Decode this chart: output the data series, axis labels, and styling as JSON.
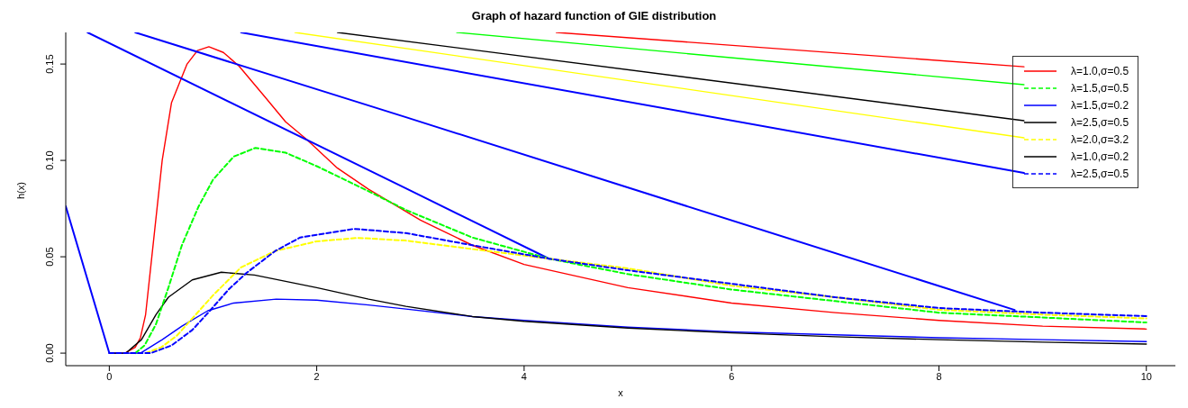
{
  "chart_data": {
    "type": "line",
    "title": "Graph of hazard function of GIE distribution",
    "xlabel": "x",
    "ylabel": "h(x)",
    "xlim": [
      -0.42,
      10.28
    ],
    "ylim": [
      -0.0065,
      0.1664
    ],
    "xticks": [
      0,
      2,
      4,
      6,
      8,
      10
    ],
    "yticks": [
      {
        "value": 0,
        "label": "0.00"
      },
      {
        "value": 0.05,
        "label": "0.05"
      },
      {
        "value": 0.1,
        "label": "0.10"
      },
      {
        "value": 0.15,
        "label": "0.15"
      }
    ],
    "grid": false,
    "legend": "top right",
    "marker": "none",
    "series": [
      {
        "name": "λ=1.0,σ=0.5",
        "color": "#ff0000",
        "line_style": "solid",
        "x": [
          0,
          0.15,
          0.25,
          0.3,
          0.35,
          0.41,
          0.46,
          0.51,
          0.6,
          0.75,
          0.85,
          0.96,
          1.1,
          1.25,
          1.5,
          1.7,
          1.9,
          2.2,
          2.5,
          3,
          3.5,
          4,
          5,
          6,
          7,
          8,
          9,
          10
        ],
        "values": [
          0,
          0,
          0.003,
          0.008,
          0.02,
          0.05,
          0.075,
          0.1,
          0.13,
          0.15,
          0.157,
          0.159,
          0.156,
          0.149,
          0.133,
          0.12,
          0.111,
          0.096,
          0.085,
          0.069,
          0.056,
          0.046,
          0.034,
          0.026,
          0.021,
          0.017,
          0.014,
          0.0125
        ]
      },
      {
        "name": "λ=1.5,σ=0.5",
        "color": "#00ff00",
        "line_style": "dashed",
        "x": [
          0.25,
          0.34,
          0.45,
          0.57,
          0.7,
          0.86,
          1,
          1.2,
          1.41,
          1.7,
          2,
          2.5,
          2.86,
          3.5,
          4.24,
          5,
          6,
          7,
          8,
          9,
          10
        ],
        "values": [
          0,
          0.004,
          0.015,
          0.034,
          0.056,
          0.076,
          0.09,
          0.102,
          0.1065,
          0.104,
          0.097,
          0.084,
          0.0743,
          0.06,
          0.049,
          0.041,
          0.033,
          0.027,
          0.021,
          0.0185,
          0.0159
        ]
      },
      {
        "name": "λ=1.5,σ=0.2",
        "color": "#0000ff",
        "line_style": "solid",
        "x": [
          0,
          0.3,
          0.51,
          0.7,
          0.95,
          1.2,
          1.61,
          2,
          2.5,
          2.86,
          3.5,
          4,
          5,
          6,
          7,
          8,
          9,
          10
        ],
        "values": [
          0,
          0,
          0.007,
          0.014,
          0.022,
          0.026,
          0.028,
          0.0275,
          0.025,
          0.0229,
          0.019,
          0.017,
          0.0135,
          0.011,
          0.0095,
          0.008,
          0.007,
          0.006
        ]
      },
      {
        "name": "λ=2.5,σ=0.5",
        "color": "#000000",
        "line_style": "solid",
        "x": [
          2.2,
          8.82
        ],
        "values": [
          0.1664,
          0.1206
        ]
      },
      {
        "name": "λ=2.0,σ=3.2",
        "color": "#ffff00",
        "line_style": "dashed",
        "x": [
          0.35,
          0.5,
          0.65,
          0.8,
          1,
          1.27,
          1.6,
          2,
          2.4,
          2.86,
          3.5,
          4.24,
          5,
          6,
          7,
          8,
          9,
          10
        ],
        "values": [
          0,
          0.003,
          0.009,
          0.018,
          0.03,
          0.0445,
          0.053,
          0.058,
          0.0598,
          0.0584,
          0.054,
          0.049,
          0.044,
          0.035,
          0.029,
          0.0225,
          0.02,
          0.018
        ]
      },
      {
        "name": "λ=1.0,σ=0.2",
        "color": "#000000",
        "line_style": "solid",
        "x": [
          0,
          0.16,
          0.31,
          0.45,
          0.57,
          0.8,
          1.08,
          1.4,
          2,
          2.5,
          2.86,
          3.5,
          4,
          5,
          6,
          7,
          8,
          9,
          10
        ],
        "values": [
          0,
          0,
          0.007,
          0.02,
          0.029,
          0.038,
          0.042,
          0.0405,
          0.034,
          0.028,
          0.0243,
          0.019,
          0.0165,
          0.013,
          0.0105,
          0.0085,
          0.007,
          0.0057,
          0.0047
        ]
      },
      {
        "name": "λ=2.5,σ=0.5",
        "color": "#0000ff",
        "line_style": "dashed",
        "x": [
          0,
          0.4,
          0.6,
          0.8,
          0.97,
          1.15,
          1.32,
          1.6,
          1.84,
          2.36,
          2.86,
          3.5,
          4.24,
          5,
          6,
          7,
          8,
          9,
          10
        ],
        "values": [
          0,
          0,
          0.004,
          0.012,
          0.022,
          0.033,
          0.0415,
          0.053,
          0.06,
          0.0645,
          0.0623,
          0.056,
          0.049,
          0.043,
          0.036,
          0.029,
          0.0234,
          0.021,
          0.0192
        ]
      },
      {
        "color": "#ff0000",
        "line_style": "solid",
        "x": [
          4.31,
          8.82
        ],
        "values": [
          0.1664,
          0.1486
        ]
      },
      {
        "color": "#00ff00",
        "line_style": "solid",
        "x": [
          3.35,
          8.82
        ],
        "values": [
          0.1664,
          0.1393
        ]
      },
      {
        "color": "#ffff00",
        "line_style": "solid",
        "x": [
          1.79,
          8.82
        ],
        "values": [
          0.1664,
          0.1117
        ]
      },
      {
        "color": "#0000ff",
        "line_style": "solid",
        "x": [
          1.27,
          8.82
        ],
        "values": [
          0.1664,
          0.0935
        ]
      },
      {
        "color": "#0000ff",
        "line_style": "solid",
        "x": [
          -0.42,
          0
        ],
        "values": [
          0.0762,
          0
        ]
      },
      {
        "color": "#0000ff",
        "line_style": "solid",
        "x": [
          -0.21,
          2.86,
          4.24
        ],
        "values": [
          0.1664,
          0.0855,
          0.049
        ]
      },
      {
        "color": "#0000ff",
        "line_style": "solid",
        "x": [
          0.25,
          2.86,
          8.73
        ],
        "values": [
          0.1664,
          0.1224,
          0.0224
        ]
      }
    ]
  }
}
